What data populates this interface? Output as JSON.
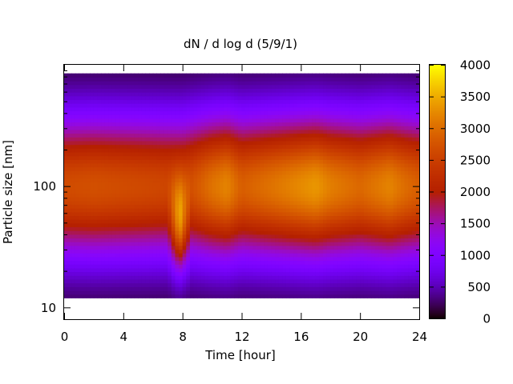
{
  "chart_data": {
    "type": "heatmap",
    "title": "dN / d log d (5/9/1)",
    "xlabel": "Time [hour]",
    "ylabel": "Particle size [nm]",
    "x_range": [
      0,
      24
    ],
    "x_ticks": [
      0,
      4,
      8,
      12,
      16,
      20,
      24
    ],
    "x_tick_labels": [
      "0",
      "4",
      "8",
      "12",
      "16",
      "20",
      "24"
    ],
    "y_scale": "log",
    "y_range": [
      8,
      1000
    ],
    "y_ticks": [
      10,
      100
    ],
    "y_tick_labels": [
      "10",
      "100"
    ],
    "y_minor_ticks": [
      20,
      30,
      40,
      50,
      60,
      70,
      80,
      90,
      200,
      300,
      400,
      500,
      600,
      700,
      800,
      900
    ],
    "colorbar": {
      "range": [
        0,
        4000
      ],
      "ticks": [
        0,
        500,
        1000,
        1500,
        2000,
        2500,
        3000,
        3500,
        4000
      ],
      "tick_labels": [
        "0",
        "500",
        "1000",
        "1500",
        "2000",
        "2500",
        "3000",
        "3500",
        "4000"
      ],
      "colormap": "gnuplot black-purple-red-orange-yellow"
    },
    "size_range_nm": [
      12,
      850
    ],
    "base_profile": {
      "description": "log-normal mode in d",
      "peak_size_nm": [
        {
          "hour": 0,
          "d": 100
        },
        {
          "hour": 24,
          "d": 100
        }
      ],
      "peak_value": [
        {
          "hour": 0,
          "v": 2600
        },
        {
          "hour": 2,
          "v": 2650
        },
        {
          "hour": 4,
          "v": 2600
        },
        {
          "hour": 6,
          "v": 2550
        },
        {
          "hour": 8,
          "v": 2500
        },
        {
          "hour": 10,
          "v": 3000
        },
        {
          "hour": 11,
          "v": 3150
        },
        {
          "hour": 12,
          "v": 2800
        },
        {
          "hour": 14,
          "v": 3000
        },
        {
          "hour": 16,
          "v": 3200
        },
        {
          "hour": 17,
          "v": 3300
        },
        {
          "hour": 18,
          "v": 3100
        },
        {
          "hour": 20,
          "v": 2900
        },
        {
          "hour": 22,
          "v": 3150
        },
        {
          "hour": 23,
          "v": 2950
        },
        {
          "hour": 24,
          "v": 2800
        }
      ]
    },
    "features": [
      {
        "name": "nucleation event",
        "hour_start": 7.0,
        "hour_end": 8.6,
        "min_size_nm": 20,
        "note": "band extends down to ~20 nm at 8 h"
      }
    ]
  }
}
